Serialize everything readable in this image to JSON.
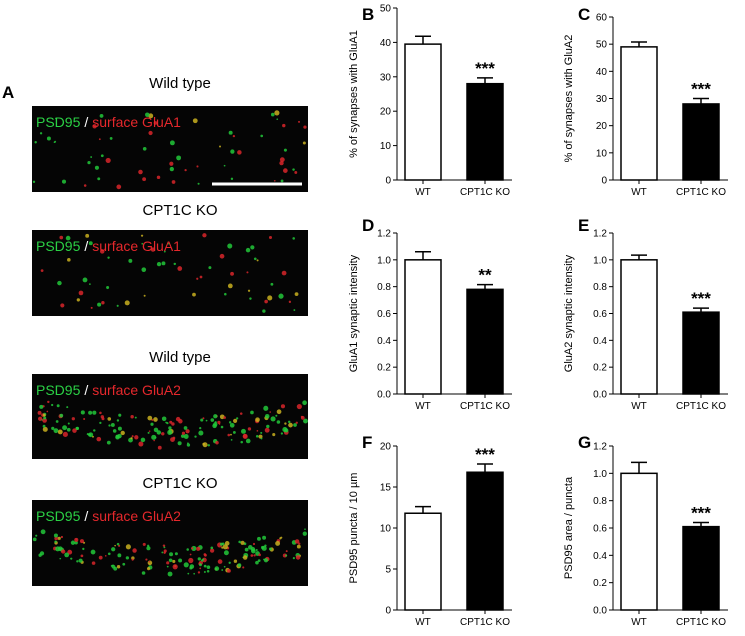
{
  "figure_a": {
    "label": "A",
    "panels": [
      {
        "title": "Wild type",
        "stain1": "PSD95",
        "separator": "/",
        "stain2": "surface GluA1"
      },
      {
        "title": "CPT1C KO",
        "stain1": "PSD95",
        "separator": "/",
        "stain2": "surface GluA1"
      },
      {
        "title": "Wild type",
        "stain1": "PSD95",
        "separator": "/",
        "stain2": "surface GluA2"
      },
      {
        "title": "CPT1C KO",
        "stain1": "PSD95",
        "separator": "/",
        "stain2": "surface GluA2"
      }
    ]
  },
  "chart_data": [
    {
      "type": "bar",
      "panel": "B",
      "ylabel": "% of synapses with GluA1",
      "categories": [
        "WT",
        "CPT1C KO"
      ],
      "values": [
        39.5,
        28
      ],
      "errors": [
        2.3,
        1.7
      ],
      "colors": [
        "#ffffff",
        "#000000"
      ],
      "annotation": "***",
      "ylim": [
        0,
        50
      ],
      "yticks": [
        0,
        10,
        20,
        30,
        40,
        50
      ]
    },
    {
      "type": "bar",
      "panel": "C",
      "ylabel": "% of synapses with GluA2",
      "categories": [
        "WT",
        "CPT1C KO"
      ],
      "values": [
        49,
        28
      ],
      "errors": [
        1.8,
        2
      ],
      "colors": [
        "#ffffff",
        "#000000"
      ],
      "annotation": "***",
      "ylim": [
        0,
        60
      ],
      "yticks": [
        0,
        10,
        20,
        30,
        40,
        50,
        60
      ]
    },
    {
      "type": "bar",
      "panel": "D",
      "ylabel": "GluA1 synaptic intensity",
      "categories": [
        "WT",
        "CPT1C KO"
      ],
      "values": [
        1.0,
        0.78
      ],
      "errors": [
        0.06,
        0.035
      ],
      "colors": [
        "#ffffff",
        "#000000"
      ],
      "annotation": "**",
      "ylim": [
        0,
        1.2
      ],
      "yticks": [
        {
          "value": 0,
          "label": "0.0"
        },
        0.2,
        0.4,
        0.6,
        0.8,
        {
          "value": 1,
          "label": "1.0"
        },
        1.2
      ]
    },
    {
      "type": "bar",
      "panel": "E",
      "ylabel": "GluA2 synaptic intensity",
      "categories": [
        "WT",
        "CPT1C KO"
      ],
      "values": [
        1.0,
        0.61
      ],
      "errors": [
        0.035,
        0.03
      ],
      "colors": [
        "#ffffff",
        "#000000"
      ],
      "annotation": "***",
      "ylim": [
        0,
        1.2
      ],
      "yticks": [
        {
          "value": 0,
          "label": "0.0"
        },
        0.2,
        0.4,
        0.6,
        0.8,
        {
          "value": 1,
          "label": "1.0"
        },
        1.2
      ]
    },
    {
      "type": "bar",
      "panel": "F",
      "ylabel": "PSD95 puncta / 10 µm",
      "categories": [
        "WT",
        "CPT1C KO"
      ],
      "values": [
        11.8,
        16.8
      ],
      "errors": [
        0.8,
        1.0
      ],
      "colors": [
        "#ffffff",
        "#000000"
      ],
      "annotation": "***",
      "ylim": [
        0,
        20
      ],
      "yticks": [
        0,
        5,
        10,
        15,
        20
      ]
    },
    {
      "type": "bar",
      "panel": "G",
      "ylabel": "PSD95 area / puncta",
      "categories": [
        "WT",
        "CPT1C KO"
      ],
      "values": [
        1.0,
        0.61
      ],
      "errors": [
        0.08,
        0.03
      ],
      "colors": [
        "#ffffff",
        "#000000"
      ],
      "annotation": "***",
      "ylim": [
        0,
        1.2
      ],
      "yticks": [
        {
          "value": 0,
          "label": "0.0"
        },
        0.2,
        0.4,
        0.6,
        0.8,
        {
          "value": 1,
          "label": "1.0"
        },
        1.2
      ]
    }
  ]
}
